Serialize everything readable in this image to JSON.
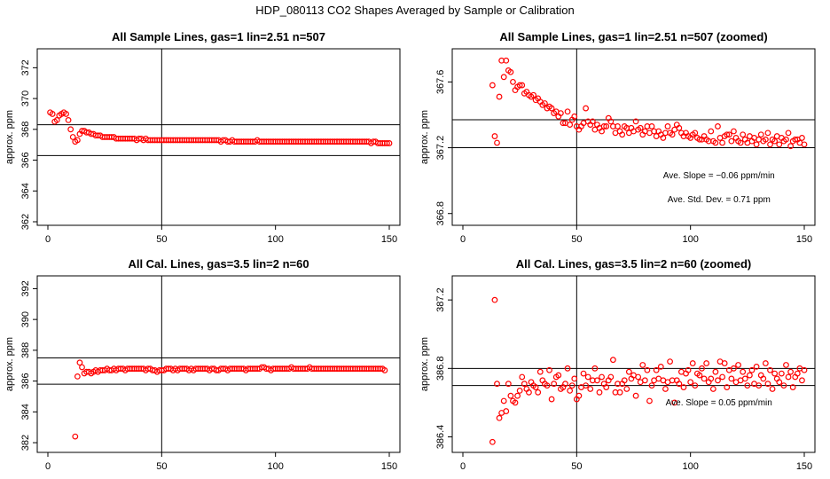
{
  "figure": {
    "title": "HDP_080113  CO2 Shapes Averaged by Sample or Calibration"
  },
  "chart_data": [
    {
      "type": "scatter",
      "title": "All Sample Lines, gas=1 lin=2.51 n=507",
      "ylabel": "approx. ppm",
      "xlim": [
        0,
        150
      ],
      "ylim": [
        362,
        373
      ],
      "xticks": [
        0,
        50,
        100,
        150
      ],
      "yticks": [
        362,
        364,
        366,
        368,
        370,
        372
      ],
      "vline": 50,
      "hlines": [
        368.3,
        366.3
      ],
      "annotations": [],
      "x_start": 1,
      "values": [
        369.1,
        369.0,
        368.5,
        368.6,
        368.9,
        369.0,
        369.1,
        369.0,
        368.6,
        368.0,
        367.5,
        367.2,
        367.3,
        367.7,
        367.9,
        367.9,
        367.8,
        367.8,
        367.7,
        367.7,
        367.6,
        367.6,
        367.6,
        367.5,
        367.5,
        367.5,
        367.5,
        367.5,
        367.5,
        367.4,
        367.4,
        367.4,
        367.4,
        367.4,
        367.4,
        367.4,
        367.4,
        367.4,
        367.3,
        367.4,
        367.4,
        367.3,
        367.4,
        367.3,
        367.3,
        367.3,
        367.3,
        367.3,
        367.3,
        367.3,
        367.3,
        367.3,
        367.3,
        367.3,
        367.3,
        367.3,
        367.3,
        367.3,
        367.3,
        367.3,
        367.3,
        367.3,
        367.3,
        367.3,
        367.3,
        367.3,
        367.3,
        367.3,
        367.3,
        367.3,
        367.3,
        367.3,
        367.3,
        367.3,
        367.3,
        367.2,
        367.3,
        367.3,
        367.2,
        367.2,
        367.3,
        367.2,
        367.2,
        367.2,
        367.2,
        367.2,
        367.2,
        367.2,
        367.2,
        367.2,
        367.2,
        367.3,
        367.2,
        367.2,
        367.2,
        367.2,
        367.2,
        367.2,
        367.2,
        367.2,
        367.2,
        367.2,
        367.2,
        367.2,
        367.2,
        367.2,
        367.2,
        367.2,
        367.2,
        367.2,
        367.2,
        367.2,
        367.2,
        367.2,
        367.2,
        367.2,
        367.2,
        367.2,
        367.2,
        367.2,
        367.2,
        367.2,
        367.2,
        367.2,
        367.2,
        367.2,
        367.2,
        367.2,
        367.2,
        367.2,
        367.2,
        367.2,
        367.2,
        367.2,
        367.2,
        367.2,
        367.2,
        367.2,
        367.2,
        367.2,
        367.2,
        367.1,
        367.2,
        367.2,
        367.1,
        367.1,
        367.1,
        367.1,
        367.1,
        367.1
      ]
    },
    {
      "type": "scatter",
      "title": "All Sample Lines, gas=1 lin=2.51 n=507 (zoomed)",
      "ylabel": "approx. ppm",
      "xlim": [
        0,
        150
      ],
      "ylim": [
        366.75,
        367.78
      ],
      "xticks": [
        0,
        50,
        100,
        150
      ],
      "yticks": [
        366.8,
        367.2,
        367.6
      ],
      "vline": 50,
      "hlines": [
        367.37,
        367.2
      ],
      "annotations": [
        "Ave. Slope =  −0.06  ppm/min",
        "Ave. Std. Dev. =  0.71  ppm"
      ],
      "x_start": 13,
      "values": [
        367.58,
        367.27,
        367.23,
        367.51,
        367.73,
        367.63,
        367.73,
        367.67,
        367.66,
        367.6,
        367.55,
        367.57,
        367.58,
        367.58,
        367.53,
        367.54,
        367.52,
        367.51,
        367.52,
        367.49,
        367.5,
        367.48,
        367.46,
        367.47,
        367.44,
        367.45,
        367.44,
        367.41,
        367.42,
        367.39,
        367.41,
        367.35,
        367.35,
        367.42,
        367.34,
        367.37,
        367.39,
        367.33,
        367.31,
        367.33,
        367.35,
        367.44,
        367.36,
        367.34,
        367.36,
        367.31,
        367.34,
        367.32,
        367.3,
        367.33,
        367.33,
        367.38,
        367.36,
        367.33,
        367.29,
        367.33,
        367.3,
        367.28,
        367.33,
        367.32,
        367.29,
        367.32,
        367.3,
        367.36,
        367.31,
        367.32,
        367.28,
        367.3,
        367.33,
        367.29,
        367.33,
        367.3,
        367.27,
        367.3,
        367.28,
        367.26,
        367.29,
        367.33,
        367.29,
        367.28,
        367.31,
        367.34,
        367.32,
        367.29,
        367.27,
        367.29,
        367.27,
        367.26,
        367.28,
        367.29,
        367.26,
        367.25,
        367.25,
        367.27,
        367.25,
        367.24,
        367.3,
        367.24,
        367.23,
        367.33,
        367.26,
        367.23,
        367.27,
        367.28,
        367.28,
        367.24,
        367.3,
        367.26,
        367.24,
        367.23,
        367.28,
        367.25,
        367.23,
        367.27,
        367.24,
        367.26,
        367.22,
        367.25,
        367.28,
        367.24,
        367.25,
        367.29,
        367.22,
        367.25,
        367.24,
        367.27,
        367.22,
        367.26,
        367.24,
        367.25,
        367.29,
        367.21,
        367.24,
        367.25,
        367.25,
        367.23,
        367.26,
        367.22,
        367.18,
        367.24,
        367.21,
        367.2,
        367.19
      ]
    },
    {
      "type": "scatter",
      "title": "All Cal. Lines, gas=3.5 lin=2 n=60",
      "ylabel": "approx. ppm",
      "xlim": [
        0,
        150
      ],
      "ylim": [
        381.6,
        392.6
      ],
      "xticks": [
        0,
        50,
        100,
        150
      ],
      "yticks": [
        382,
        384,
        386,
        388,
        390,
        392
      ],
      "vline": 50,
      "hlines": [
        387.5,
        385.8
      ],
      "annotations": [],
      "x_start": 12,
      "values": [
        382.4,
        386.3,
        387.2,
        386.9,
        386.5,
        386.6,
        386.6,
        386.5,
        386.6,
        386.7,
        386.6,
        386.7,
        386.7,
        386.7,
        386.8,
        386.7,
        386.7,
        386.8,
        386.7,
        386.8,
        386.8,
        386.8,
        386.7,
        386.8,
        386.8,
        386.8,
        386.8,
        386.8,
        386.8,
        386.8,
        386.8,
        386.7,
        386.8,
        386.8,
        386.7,
        386.7,
        386.6,
        386.7,
        386.7,
        386.7,
        386.8,
        386.8,
        386.8,
        386.7,
        386.8,
        386.7,
        386.8,
        386.8,
        386.8,
        386.8,
        386.7,
        386.8,
        386.7,
        386.8,
        386.8,
        386.8,
        386.8,
        386.8,
        386.8,
        386.7,
        386.8,
        386.8,
        386.7,
        386.7,
        386.8,
        386.8,
        386.8,
        386.7,
        386.8,
        386.8,
        386.8,
        386.8,
        386.8,
        386.8,
        386.8,
        386.7,
        386.8,
        386.8,
        386.8,
        386.8,
        386.8,
        386.8,
        386.9,
        386.9,
        386.8,
        386.8,
        386.7,
        386.8,
        386.8,
        386.8,
        386.8,
        386.8,
        386.8,
        386.8,
        386.8,
        386.9,
        386.8,
        386.8,
        386.8,
        386.8,
        386.8,
        386.8,
        386.8,
        386.9,
        386.8,
        386.8,
        386.8,
        386.8,
        386.8,
        386.8,
        386.8,
        386.8,
        386.8,
        386.8,
        386.8,
        386.8,
        386.8,
        386.8,
        386.8,
        386.8,
        386.8,
        386.8,
        386.8,
        386.8,
        386.8,
        386.8,
        386.8,
        386.8,
        386.8,
        386.8,
        386.8,
        386.8,
        386.8,
        386.8,
        386.8,
        386.8,
        386.7
      ]
    },
    {
      "type": "scatter",
      "title": "All Cal. Lines, gas=3.5 lin=2 n=60 (zoomed)",
      "ylabel": "approx. ppm",
      "xlim": [
        0,
        150
      ],
      "ylim": [
        386.33,
        387.32
      ],
      "xticks": [
        0,
        50,
        100,
        150
      ],
      "yticks": [
        386.4,
        386.8,
        387.2
      ],
      "vline": 50,
      "hlines": [
        386.8,
        386.7
      ],
      "annotations": [
        "Ave. Slope =  0.05  ppm/min"
      ],
      "x_start": 13,
      "values": [
        386.37,
        387.2,
        386.71,
        386.51,
        386.54,
        386.61,
        386.55,
        386.71,
        386.64,
        386.61,
        386.6,
        386.64,
        386.67,
        386.75,
        386.71,
        386.68,
        386.66,
        386.72,
        386.7,
        386.69,
        386.66,
        386.78,
        386.73,
        386.71,
        386.7,
        386.79,
        386.62,
        386.71,
        386.75,
        386.76,
        386.68,
        386.69,
        386.71,
        386.8,
        386.67,
        386.7,
        386.74,
        386.62,
        386.64,
        386.69,
        386.77,
        386.7,
        386.75,
        386.68,
        386.73,
        386.8,
        386.73,
        386.66,
        386.75,
        386.71,
        386.69,
        386.73,
        386.75,
        386.85,
        386.66,
        386.71,
        386.66,
        386.71,
        386.73,
        386.68,
        386.78,
        386.74,
        386.76,
        386.64,
        386.75,
        386.72,
        386.82,
        386.73,
        386.79,
        386.61,
        386.7,
        386.73,
        386.79,
        386.74,
        386.81,
        386.73,
        386.68,
        386.72,
        386.84,
        386.73,
        386.6,
        386.73,
        386.71,
        386.78,
        386.69,
        386.77,
        386.79,
        386.72,
        386.83,
        386.7,
        386.77,
        386.76,
        386.8,
        386.74,
        386.83,
        386.72,
        386.74,
        386.68,
        386.78,
        386.73,
        386.84,
        386.75,
        386.83,
        386.69,
        386.79,
        386.74,
        386.8,
        386.72,
        386.82,
        386.73,
        386.78,
        386.74,
        386.7,
        386.76,
        386.79,
        386.71,
        386.81,
        386.7,
        386.76,
        386.74,
        386.83,
        386.71,
        386.79,
        386.68,
        386.77,
        386.74,
        386.72,
        386.77,
        386.7,
        386.82,
        386.75,
        386.78,
        386.69,
        386.75,
        386.77,
        386.8,
        386.73,
        386.79,
        386.78,
        386.66
      ]
    }
  ]
}
